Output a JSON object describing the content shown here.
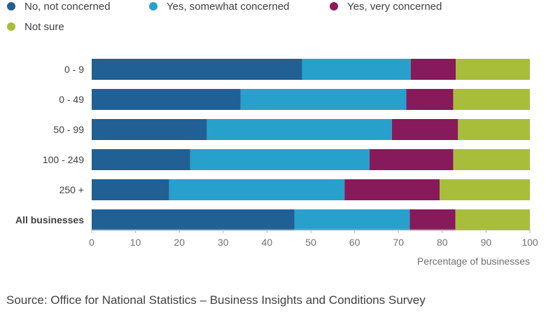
{
  "chart_data": {
    "type": "bar",
    "orientation": "horizontal",
    "stacked": true,
    "categories": [
      "0 - 9",
      "0 - 49",
      "50 - 99",
      "100 - 249",
      "250 +",
      "All businesses"
    ],
    "series": [
      {
        "name": "No, not concerned",
        "values": [
          48,
          34,
          26.3,
          22.5,
          17.7,
          46.3
        ]
      },
      {
        "name": "Yes, somewhat concerned",
        "values": [
          24.8,
          37.8,
          42.2,
          40.9,
          40.0,
          26.3
        ]
      },
      {
        "name": "Yes, very concerned",
        "values": [
          10.3,
          10.7,
          15.1,
          19.1,
          21.7,
          10.4
        ]
      },
      {
        "name": "Not sure",
        "values": [
          16.9,
          17.5,
          16.4,
          17.5,
          20.6,
          17.0
        ]
      }
    ],
    "colors": [
      "#206095",
      "#27a0cc",
      "#871a5b",
      "#a8bd3a"
    ],
    "emphasized_category": "All businesses",
    "xlabel": "Percentage of businesses",
    "ylabel": "",
    "xlim": [
      0,
      100
    ],
    "xticks": [
      0,
      10,
      20,
      30,
      40,
      50,
      60,
      70,
      80,
      90,
      100
    ],
    "grid": false,
    "legend_position": "top-left"
  },
  "source": "Source: Office for National Statistics – Business Insights and Conditions Survey"
}
